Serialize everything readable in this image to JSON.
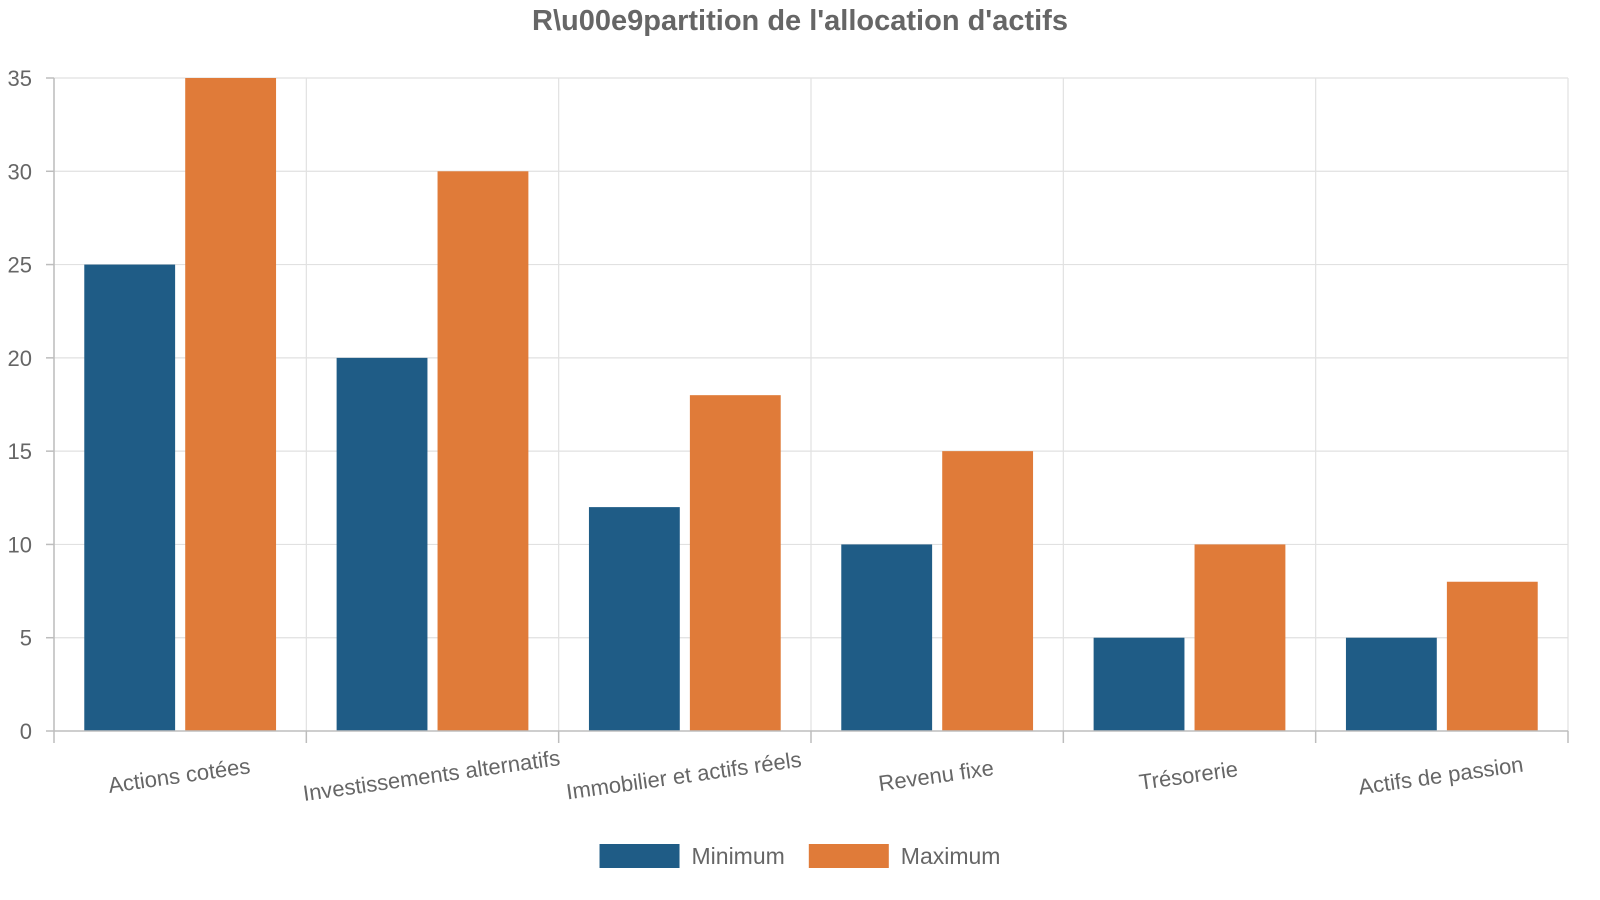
{
  "chart_data": {
    "type": "bar",
    "title": "R\\u00e9partition de l'allocation d'actifs",
    "xlabel": "",
    "ylabel": "",
    "categories": [
      "Actions cotées",
      "Investissements alternatifs",
      "Immobilier et actifs réels",
      "Revenu fixe",
      "Trésorerie",
      "Actifs de passion"
    ],
    "series": [
      {
        "name": "Minimum",
        "color": "#1f5c86",
        "values": [
          25,
          20,
          12,
          10,
          5,
          5
        ]
      },
      {
        "name": "Maximum",
        "color": "#e07b39",
        "values": [
          35,
          30,
          18,
          15,
          10,
          8
        ]
      }
    ],
    "ylim": [
      0,
      35
    ],
    "yticks": [
      "0",
      "5",
      "10",
      "15",
      "20",
      "25",
      "30",
      "35"
    ],
    "grid": true,
    "legend": "bottom-center"
  }
}
